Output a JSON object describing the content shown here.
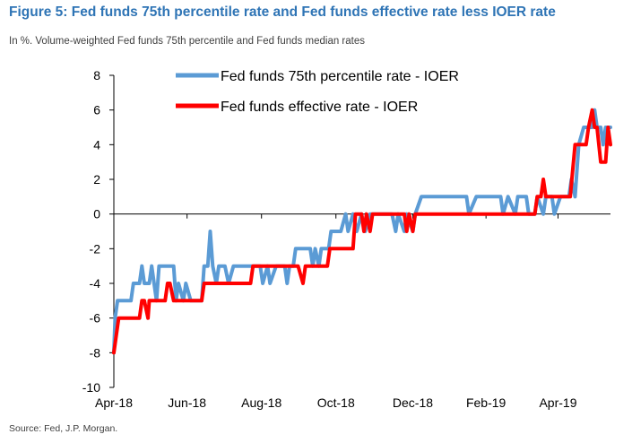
{
  "header": {
    "title": "Figure 5: Fed funds 75th percentile rate and Fed funds effective rate less IOER rate",
    "subtitle": "In %. Volume-weighted Fed funds 75th percentile and Fed funds median rates"
  },
  "footer": {
    "source": "Source: Fed, J.P. Morgan."
  },
  "chart_data": {
    "type": "line",
    "title": "Figure 5: Fed funds 75th percentile rate and Fed funds effective rate less IOER rate",
    "subtitle": "In %. Volume-weighted Fed funds 75th percentile and Fed funds median rates",
    "xlabel": "",
    "ylabel": "",
    "ylim": [
      -10,
      8
    ],
    "y_ticks": [
      -10,
      -8,
      -6,
      -4,
      -2,
      0,
      2,
      4,
      6,
      8
    ],
    "y_tick_labels": [
      "-10",
      "-8",
      "-6",
      "-4",
      "-2",
      "0",
      "2",
      "4",
      "6",
      "8"
    ],
    "x_tick_labels": [
      "Apr-18",
      "Jun-18",
      "Aug-18",
      "Oct-18",
      "Dec-18",
      "Feb-19",
      "Apr-19"
    ],
    "x_ticks": [
      "2018-04-02",
      "2018-06-01",
      "2018-08-01",
      "2018-10-01",
      "2018-12-03",
      "2019-02-01",
      "2019-04-01"
    ],
    "xlim": [
      "2018-04-02",
      "2019-05-14"
    ],
    "legend_position": "top-center",
    "grid": false,
    "series": [
      {
        "name": "Fed funds 75th percentile rate - IOER",
        "color": "#5b9bd5",
        "points": [
          [
            "2018-04-02",
            -8
          ],
          [
            "2018-04-03",
            -6
          ],
          [
            "2018-04-05",
            -5
          ],
          [
            "2018-04-16",
            -5
          ],
          [
            "2018-04-18",
            -4
          ],
          [
            "2018-04-23",
            -4
          ],
          [
            "2018-04-25",
            -3
          ],
          [
            "2018-04-27",
            -4
          ],
          [
            "2018-05-01",
            -4
          ],
          [
            "2018-05-03",
            -3
          ],
          [
            "2018-05-07",
            -5
          ],
          [
            "2018-05-09",
            -3
          ],
          [
            "2018-05-21",
            -3
          ],
          [
            "2018-05-23",
            -5
          ],
          [
            "2018-05-25",
            -4
          ],
          [
            "2018-05-29",
            -5
          ],
          [
            "2018-05-31",
            -4
          ],
          [
            "2018-06-04",
            -5
          ],
          [
            "2018-06-13",
            -5
          ],
          [
            "2018-06-15",
            -3
          ],
          [
            "2018-06-18",
            -3
          ],
          [
            "2018-06-20",
            -1
          ],
          [
            "2018-06-22",
            -3
          ],
          [
            "2018-06-25",
            -4
          ],
          [
            "2018-06-27",
            -3
          ],
          [
            "2018-07-02",
            -3
          ],
          [
            "2018-07-05",
            -4
          ],
          [
            "2018-07-09",
            -3
          ],
          [
            "2018-07-31",
            -3
          ],
          [
            "2018-08-02",
            -4
          ],
          [
            "2018-08-06",
            -3
          ],
          [
            "2018-08-08",
            -4
          ],
          [
            "2018-08-13",
            -3
          ],
          [
            "2018-08-20",
            -3
          ],
          [
            "2018-08-22",
            -4
          ],
          [
            "2018-08-24",
            -3
          ],
          [
            "2018-08-27",
            -3
          ],
          [
            "2018-08-29",
            -2
          ],
          [
            "2018-09-10",
            -2
          ],
          [
            "2018-09-12",
            -3
          ],
          [
            "2018-09-14",
            -2
          ],
          [
            "2018-09-17",
            -3
          ],
          [
            "2018-09-19",
            -2
          ],
          [
            "2018-09-21",
            -2
          ],
          [
            "2018-09-25",
            -2
          ],
          [
            "2018-09-27",
            -1
          ],
          [
            "2018-10-05",
            -1
          ],
          [
            "2018-10-09",
            0
          ],
          [
            "2018-10-11",
            -1
          ],
          [
            "2018-10-15",
            0
          ],
          [
            "2018-10-18",
            -1
          ],
          [
            "2018-10-22",
            0
          ],
          [
            "2018-10-25",
            -1
          ],
          [
            "2018-10-29",
            0
          ],
          [
            "2018-11-16",
            0
          ],
          [
            "2018-11-19",
            -1
          ],
          [
            "2018-11-21",
            0
          ],
          [
            "2018-11-26",
            -1
          ],
          [
            "2018-11-28",
            0
          ],
          [
            "2018-12-03",
            -1
          ],
          [
            "2018-12-05",
            0
          ],
          [
            "2018-12-10",
            1
          ],
          [
            "2019-01-16",
            1
          ],
          [
            "2019-01-18",
            0
          ],
          [
            "2019-01-24",
            1
          ],
          [
            "2019-02-13",
            1
          ],
          [
            "2019-02-15",
            0
          ],
          [
            "2019-02-19",
            1
          ],
          [
            "2019-02-25",
            0
          ],
          [
            "2019-02-27",
            1
          ],
          [
            "2019-03-06",
            1
          ],
          [
            "2019-03-08",
            0
          ],
          [
            "2019-03-13",
            0
          ],
          [
            "2019-03-15",
            1
          ],
          [
            "2019-03-20",
            0
          ],
          [
            "2019-03-22",
            1
          ],
          [
            "2019-03-27",
            1
          ],
          [
            "2019-03-29",
            0
          ],
          [
            "2019-04-03",
            1
          ],
          [
            "2019-04-10",
            1
          ],
          [
            "2019-04-12",
            2
          ],
          [
            "2019-04-15",
            1
          ],
          [
            "2019-04-18",
            4
          ],
          [
            "2019-04-22",
            5
          ],
          [
            "2019-04-29",
            5
          ],
          [
            "2019-05-01",
            6
          ],
          [
            "2019-05-03",
            5
          ],
          [
            "2019-05-06",
            5
          ],
          [
            "2019-05-08",
            4
          ],
          [
            "2019-05-10",
            5
          ],
          [
            "2019-05-14",
            5
          ]
        ]
      },
      {
        "name": "Fed funds effective rate - IOER",
        "color": "#ff0000",
        "points": [
          [
            "2018-04-02",
            -8
          ],
          [
            "2018-04-04",
            -7
          ],
          [
            "2018-04-06",
            -6
          ],
          [
            "2018-04-23",
            -6
          ],
          [
            "2018-04-25",
            -5
          ],
          [
            "2018-04-27",
            -5
          ],
          [
            "2018-04-30",
            -6
          ],
          [
            "2018-05-01",
            -5
          ],
          [
            "2018-05-14",
            -5
          ],
          [
            "2018-05-16",
            -4
          ],
          [
            "2018-05-18",
            -4
          ],
          [
            "2018-05-21",
            -5
          ],
          [
            "2018-06-13",
            -5
          ],
          [
            "2018-06-15",
            -4
          ],
          [
            "2018-07-23",
            -4
          ],
          [
            "2018-07-25",
            -3
          ],
          [
            "2018-08-31",
            -3
          ],
          [
            "2018-09-04",
            -4
          ],
          [
            "2018-09-06",
            -3
          ],
          [
            "2018-09-24",
            -3
          ],
          [
            "2018-09-26",
            -2
          ],
          [
            "2018-10-15",
            -2
          ],
          [
            "2018-10-17",
            0
          ],
          [
            "2018-10-22",
            0
          ],
          [
            "2018-10-24",
            -1
          ],
          [
            "2018-10-26",
            0
          ],
          [
            "2018-10-29",
            -1
          ],
          [
            "2018-10-31",
            0
          ],
          [
            "2018-11-26",
            0
          ],
          [
            "2018-11-28",
            -1
          ],
          [
            "2018-11-30",
            0
          ],
          [
            "2018-12-03",
            -1
          ],
          [
            "2018-12-05",
            0
          ],
          [
            "2019-03-13",
            0
          ],
          [
            "2019-03-15",
            1
          ],
          [
            "2019-03-18",
            1
          ],
          [
            "2019-03-20",
            2
          ],
          [
            "2019-03-22",
            1
          ],
          [
            "2019-04-11",
            1
          ],
          [
            "2019-04-15",
            4
          ],
          [
            "2019-04-24",
            4
          ],
          [
            "2019-04-26",
            5
          ],
          [
            "2019-04-29",
            6
          ],
          [
            "2019-05-01",
            5
          ],
          [
            "2019-05-03",
            5
          ],
          [
            "2019-05-06",
            3
          ],
          [
            "2019-05-10",
            3
          ],
          [
            "2019-05-12",
            5
          ],
          [
            "2019-05-14",
            4
          ]
        ]
      }
    ]
  }
}
